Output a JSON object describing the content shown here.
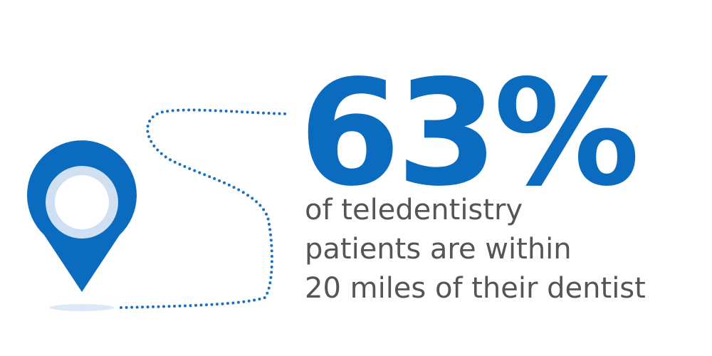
{
  "stat": "63%",
  "caption": {
    "lines": [
      "of teledentistry",
      "patients are within",
      "20 miles of their dentist"
    ]
  }
}
